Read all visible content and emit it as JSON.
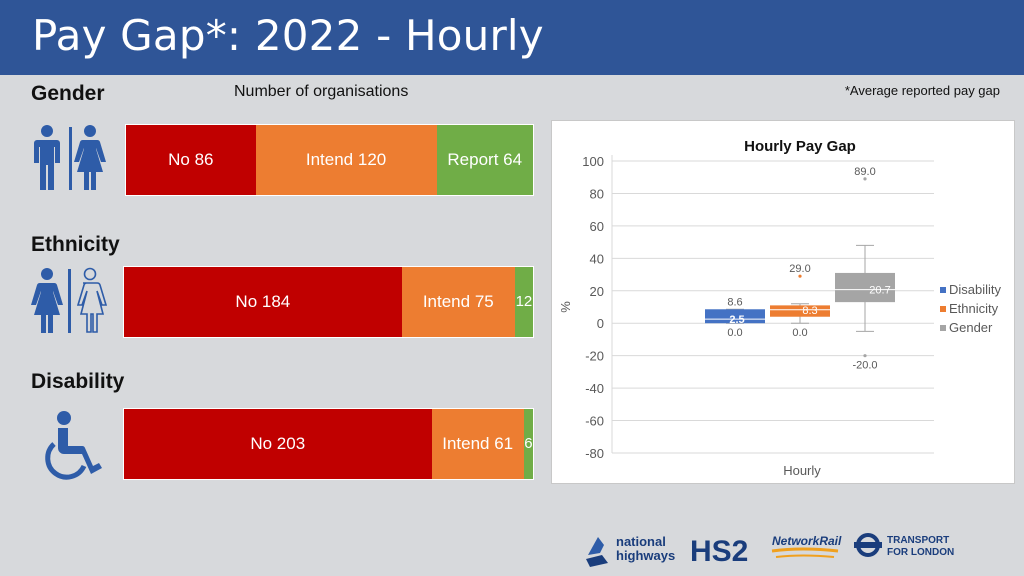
{
  "header": {
    "title": "Pay Gap*: 2022 - Hourly"
  },
  "subtitle": "Number of organisations",
  "note": "*Average reported pay gap",
  "colors": {
    "no": "#c00000",
    "intend": "#ed7d31",
    "report": "#70ad47",
    "icon": "#2e5ca8",
    "header": "#2f5597"
  },
  "sections": [
    {
      "title": "Gender",
      "icon": "male-female-restroom-icon",
      "segments": [
        {
          "label": "No 86",
          "value": 86
        },
        {
          "label": "Intend 120",
          "value": 120
        },
        {
          "label": "Report 64",
          "value": 64
        }
      ]
    },
    {
      "title": "Ethnicity",
      "icon": "two-women-icon",
      "segments": [
        {
          "label": "No 184",
          "value": 184
        },
        {
          "label": "Intend 75",
          "value": 75
        },
        {
          "label": "12",
          "value": 12
        }
      ]
    },
    {
      "title": "Disability",
      "icon": "wheelchair-icon",
      "segments": [
        {
          "label": "No 203",
          "value": 203
        },
        {
          "label": "Intend 61",
          "value": 61
        },
        {
          "label": "6",
          "value": 6
        }
      ]
    }
  ],
  "chart_data": {
    "type": "box",
    "title": "Hourly Pay Gap",
    "xlabel": "Hourly",
    "ylabel": "%",
    "ylim": [
      -80,
      100
    ],
    "yticks": [
      100,
      80,
      60,
      40,
      20,
      0,
      -20,
      -40,
      -60,
      -80
    ],
    "grid": true,
    "legend_position": "right",
    "series": [
      {
        "name": "Disability",
        "color": "#4472c4",
        "min": 0,
        "q1": 0,
        "median": 2.5,
        "q3": 8.6,
        "max": 8.6,
        "labels": {
          "max": "8.6",
          "median": "2.5",
          "min": "0.0"
        },
        "outliers": []
      },
      {
        "name": "Ethnicity",
        "color": "#ed7d31",
        "min": 0,
        "q1": 4,
        "median": 8.3,
        "q3": 11,
        "max": 12,
        "labels": {
          "outlier": "29.0",
          "median": "8.3",
          "min": "0.0"
        },
        "outliers": [
          29.0
        ]
      },
      {
        "name": "Gender",
        "color": "#a5a5a5",
        "min": -5,
        "q1": 13,
        "median": 20.7,
        "q3": 31,
        "max": 48,
        "labels": {
          "outlier_high": "89.0",
          "median": "20.7",
          "outlier_low": "-20.0"
        },
        "outliers": [
          89.0,
          -20.0
        ]
      }
    ]
  },
  "logos": {
    "national": "national",
    "highways": "highways",
    "hs2": "HS2",
    "networkrail": "NetworkRail",
    "tfl_line1": "TRANSPORT",
    "tfl_line2": "FOR LONDON"
  }
}
